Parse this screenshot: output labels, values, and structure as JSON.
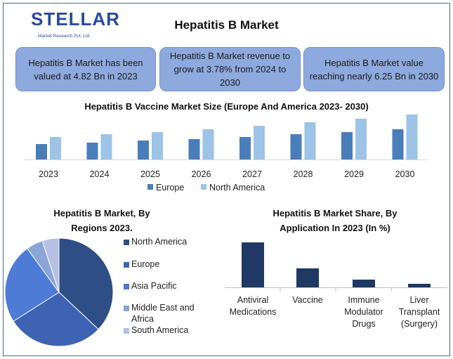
{
  "header": {
    "logo_text": "STELLAR",
    "logo_subtext": "Market Research Pvt. Ltd.",
    "title": "Hepatitis B Market"
  },
  "info_boxes": [
    {
      "text": "Hepatitis B Market has been valued at 4.82 Bn in 2023"
    },
    {
      "text": "Hepatitis B Market revenue to grow at 3.78% from 2024 to 2030"
    },
    {
      "text": "Hepatitis B Market value reaching nearly 6.25 Bn in 2030"
    }
  ],
  "chart_data": [
    {
      "type": "bar",
      "title": "Hepatitis B Vaccine Market Size (Europe And America 2023- 2030)",
      "categories": [
        "2023",
        "2024",
        "2025",
        "2026",
        "2027",
        "2028",
        "2029",
        "2030"
      ],
      "series": [
        {
          "name": "Europe",
          "values": [
            22,
            24,
            27,
            29,
            32,
            36,
            39,
            43
          ],
          "color": "#4a7ebb"
        },
        {
          "name": "North America",
          "values": [
            32,
            36,
            39,
            43,
            48,
            53,
            58,
            64
          ],
          "color": "#9dc3e6"
        }
      ],
      "legend": "bottom"
    },
    {
      "type": "pie",
      "title": "Hepatitis B Market, By Regions 2023.",
      "labels": [
        "North America",
        "Europe",
        "Asia Pacific",
        "Middle East and Africa",
        "South America"
      ],
      "values": [
        37,
        29,
        24,
        5,
        5
      ],
      "colors": [
        "#2f4e85",
        "#3e63b3",
        "#4d7bd6",
        "#8aa5d6",
        "#b4c0e2"
      ],
      "legend": "right"
    },
    {
      "type": "bar",
      "title": "Hepatitis  B Market Share, By Application In 2023 (In %)",
      "categories": [
        "Antiviral Medications",
        "Vaccine",
        "Immune Modulator Drugs",
        "Liver Transplant (Surgery)"
      ],
      "category_lines": [
        [
          "Antiviral",
          "Medications"
        ],
        [
          "Vaccine"
        ],
        [
          "Immune",
          "Modulator",
          "Drugs"
        ],
        [
          "Liver",
          "Transplant",
          "(Surgery)"
        ]
      ],
      "values": [
        64,
        27,
        11,
        5
      ],
      "color": "#1f3864"
    }
  ]
}
